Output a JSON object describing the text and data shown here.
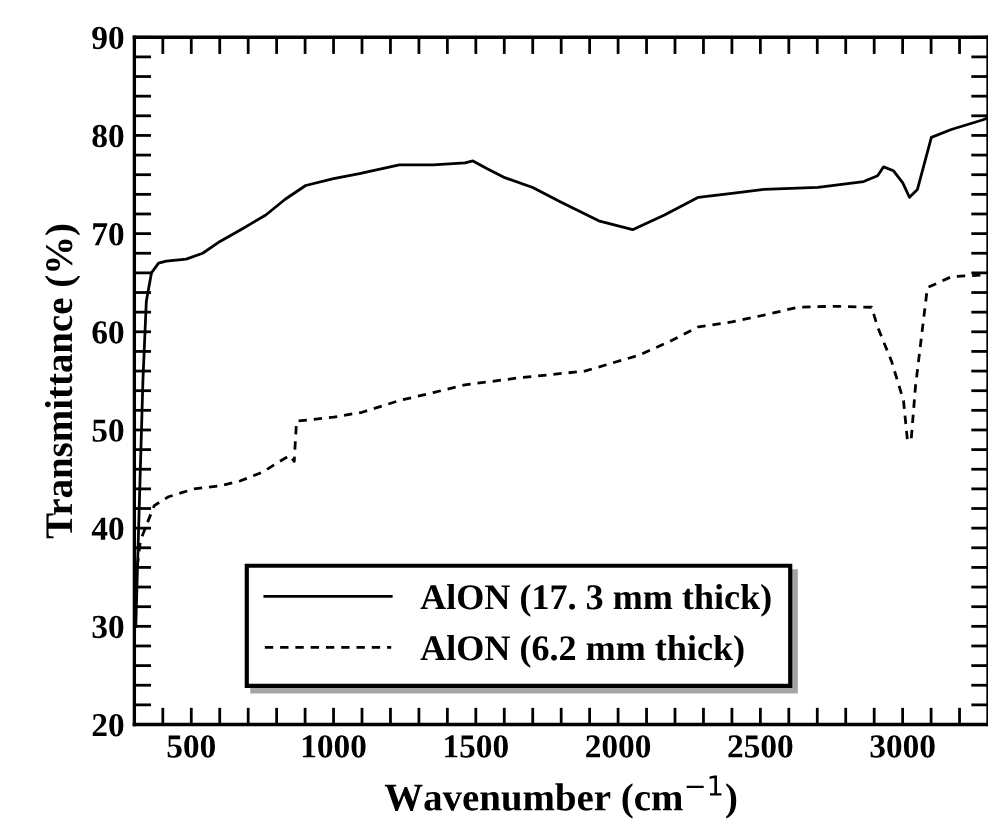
{
  "chart_data": {
    "type": "line",
    "xlabel": "Wavenumber (cm$^{−1}$)",
    "ylabel": "Transmittance (%)",
    "xlim": [
      300,
      3300
    ],
    "ylim": [
      20,
      90
    ],
    "xticks": [
      {
        "value": 400,
        "label": null
      },
      500,
      {
        "value": 600,
        "label": null
      },
      {
        "value": 700,
        "label": null
      },
      {
        "value": 800,
        "label": null
      },
      {
        "value": 900,
        "label": null
      },
      1000,
      {
        "value": 1100,
        "label": null
      },
      {
        "value": 1200,
        "label": null
      },
      {
        "value": 1300,
        "label": null
      },
      {
        "value": 1400,
        "label": null
      },
      1500,
      {
        "value": 1600,
        "label": null
      },
      {
        "value": 1700,
        "label": null
      },
      {
        "value": 1800,
        "label": null
      },
      {
        "value": 1900,
        "label": null
      },
      2000,
      {
        "value": 2100,
        "label": null
      },
      {
        "value": 2200,
        "label": null
      },
      {
        "value": 2300,
        "label": null
      },
      {
        "value": 2400,
        "label": null
      },
      2500,
      {
        "value": 2600,
        "label": null
      },
      {
        "value": 2700,
        "label": null
      },
      {
        "value": 2800,
        "label": null
      },
      {
        "value": 2900,
        "label": null
      },
      3000,
      {
        "value": 3100,
        "label": null
      },
      {
        "value": 3200,
        "label": null
      }
    ],
    "yticks": [
      20,
      {
        "value": 22,
        "label": null
      },
      {
        "value": 24,
        "label": null
      },
      {
        "value": 26,
        "label": null
      },
      {
        "value": 28,
        "label": null
      },
      30,
      {
        "value": 32,
        "label": null
      },
      {
        "value": 34,
        "label": null
      },
      {
        "value": 36,
        "label": null
      },
      {
        "value": 38,
        "label": null
      },
      40,
      {
        "value": 42,
        "label": null
      },
      {
        "value": 44,
        "label": null
      },
      {
        "value": 46,
        "label": null
      },
      {
        "value": 48,
        "label": null
      },
      50,
      {
        "value": 52,
        "label": null
      },
      {
        "value": 54,
        "label": null
      },
      {
        "value": 56,
        "label": null
      },
      {
        "value": 58,
        "label": null
      },
      60,
      {
        "value": 62,
        "label": null
      },
      {
        "value": 64,
        "label": null
      },
      {
        "value": 66,
        "label": null
      },
      {
        "value": 68,
        "label": null
      },
      70,
      {
        "value": 72,
        "label": null
      },
      {
        "value": 74,
        "label": null
      },
      {
        "value": 76,
        "label": null
      },
      {
        "value": 78,
        "label": null
      },
      80,
      {
        "value": 82,
        "label": null
      },
      {
        "value": 84,
        "label": null
      },
      {
        "value": 86,
        "label": null
      },
      {
        "value": 88,
        "label": null
      },
      90
    ],
    "grid": false,
    "legend": "bottom",
    "marker": "none",
    "series": [
      {
        "name": "AlON (17. 3 mm thick)",
        "color": "#000000",
        "line_style": "solid",
        "x": [
          305,
          312,
          320,
          330,
          342,
          360,
          385,
          412,
          482,
          540,
          601,
          680,
          762,
          830,
          902,
          1000,
          1091,
          1231,
          1350,
          1462,
          1490,
          1540,
          1602,
          1700,
          1800,
          1932,
          2051,
          2163,
          2282,
          2400,
          2513,
          2702,
          2863,
          2912,
          2933,
          2968,
          3000,
          3024,
          3052,
          3101,
          3171,
          3283,
          3300
        ],
        "values": [
          30,
          37,
          45,
          55,
          63.1,
          66,
          67,
          67.2,
          67.4,
          68,
          69.2,
          70.5,
          71.9,
          73.5,
          74.9,
          75.6,
          76.1,
          77,
          77,
          77.2,
          77.4,
          76.6,
          75.7,
          74.7,
          73.2,
          71.3,
          70.4,
          71.9,
          73.7,
          74.1,
          74.5,
          74.7,
          75.3,
          75.9,
          76.8,
          76.4,
          75.2,
          73.7,
          74.5,
          79.8,
          80.6,
          81.6,
          81.8
        ]
      },
      {
        "name": "AlON (6.2 mm thick)",
        "color": "#000000",
        "line_style": "dashed",
        "x": [
          302,
          310,
          321,
          345,
          370,
          420,
          510,
          600,
          671,
          750,
          811,
          846,
          862,
          866,
          870,
          1000,
          1100,
          1231,
          1350,
          1462,
          1650,
          1883,
          2072,
          2180,
          2282,
          2400,
          2513,
          2632,
          2760,
          2891,
          2912,
          2961,
          3003,
          3017,
          3030,
          3045,
          3087,
          3171,
          3283,
          3300
        ],
        "values": [
          33,
          36,
          38.7,
          40.5,
          42.3,
          43.2,
          44,
          44.3,
          44.8,
          45.7,
          46.8,
          47.4,
          46.8,
          49,
          50.9,
          51.3,
          51.8,
          53,
          53.8,
          54.6,
          55.3,
          56,
          57.6,
          59,
          60.5,
          61,
          61.7,
          62.5,
          62.6,
          62.5,
          60.5,
          57,
          53,
          48.9,
          49,
          54.4,
          64.5,
          65.6,
          65.8,
          65.9
        ]
      }
    ]
  }
}
